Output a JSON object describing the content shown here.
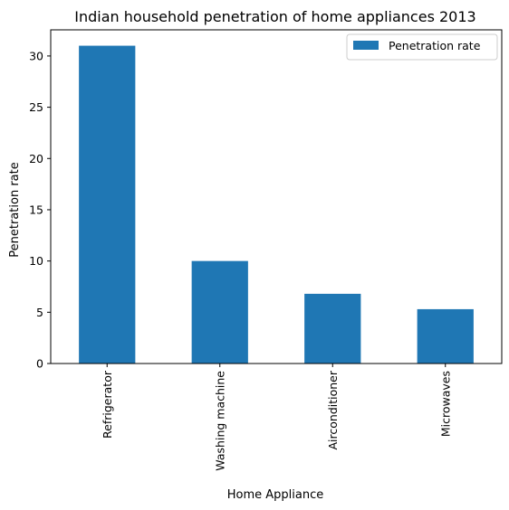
{
  "chart_data": {
    "type": "bar",
    "title": "Indian household penetration of home appliances 2013",
    "xlabel": "Home Appliance",
    "ylabel": "Penetration rate",
    "categories": [
      "Refrigerator",
      "Washing machine",
      "Airconditioner",
      "Microwaves"
    ],
    "series": [
      {
        "name": "Penetration rate",
        "values": [
          31,
          10,
          6.8,
          5.3
        ],
        "color": "#1f77b4"
      }
    ],
    "ylim": [
      0,
      32.55
    ],
    "yticks": [
      0,
      5,
      10,
      15,
      20,
      25,
      30
    ],
    "grid": false,
    "legend": "top-right"
  }
}
